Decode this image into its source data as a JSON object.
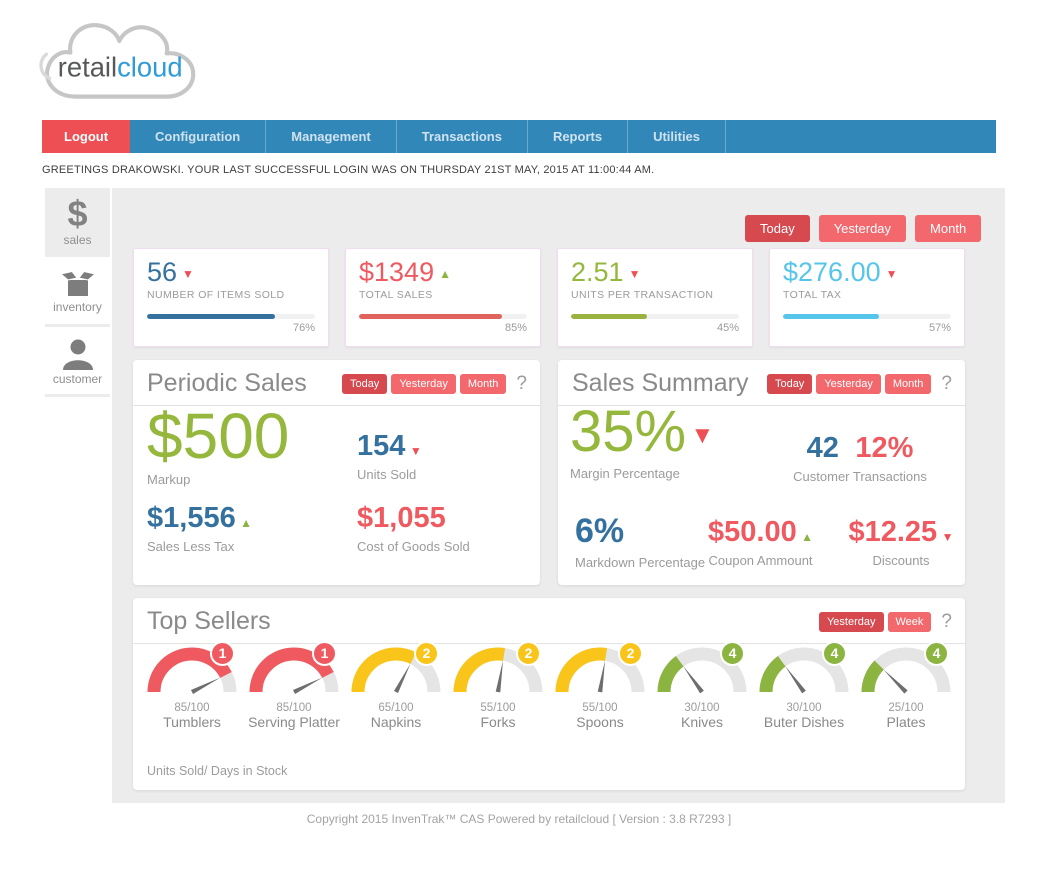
{
  "logo": {
    "retail": "retail",
    "cloud": "cloud"
  },
  "nav": {
    "items": [
      {
        "label": "Logout",
        "active": true
      },
      {
        "label": "Configuration",
        "active": false
      },
      {
        "label": "Management",
        "active": false
      },
      {
        "label": "Transactions",
        "active": false
      },
      {
        "label": "Reports",
        "active": false
      },
      {
        "label": "Utilities",
        "active": false
      }
    ]
  },
  "greeting": "GREETINGS DRAKOWSKI. YOUR LAST SUCCESSFUL LOGIN WAS ON THURSDAY 21ST MAY, 2015 AT 11:00:44 AM.",
  "sidebar": {
    "items": [
      {
        "id": "sales",
        "label": "sales",
        "icon": "dollar-icon",
        "active": true
      },
      {
        "id": "inventory",
        "label": "inventory",
        "icon": "box-icon",
        "active": false
      },
      {
        "id": "customer",
        "label": "customer",
        "icon": "person-icon",
        "active": false
      }
    ]
  },
  "top_filters": [
    {
      "label": "Today",
      "active": true
    },
    {
      "label": "Yesterday",
      "active": false
    },
    {
      "label": "Month",
      "active": false
    }
  ],
  "kpis": [
    {
      "value": "56",
      "value_color": "#35719f",
      "trend": "▼",
      "trend_color": "#ee4f55",
      "label": "NUMBER OF ITEMS SOLD",
      "percent": 76,
      "percent_label": "76%",
      "bar_color": "#35719f"
    },
    {
      "value": "$1349",
      "value_color": "#ef5a60",
      "trend": "▲",
      "trend_color": "#8cb440",
      "label": "TOTAL SALES",
      "percent": 85,
      "percent_label": "85%",
      "bar_color": "#e0635e"
    },
    {
      "value": "2.51",
      "value_color": "#94b73c",
      "trend": "▼",
      "trend_color": "#ee4f55",
      "label": "UNITS PER TRANSACTION",
      "percent": 45,
      "percent_label": "45%",
      "bar_color": "#9ab23f"
    },
    {
      "value": "$276.00",
      "value_color": "#56c5ea",
      "trend": "▼",
      "trend_color": "#ee4f55",
      "label": "TOTAL TAX",
      "percent": 57,
      "percent_label": "57%",
      "bar_color": "#56c5ea"
    }
  ],
  "periodic_sales": {
    "title": "Periodic Sales",
    "buttons": [
      {
        "label": "Today",
        "active": true
      },
      {
        "label": "Yesterday",
        "active": false
      },
      {
        "label": "Month",
        "active": false
      }
    ],
    "help": "?",
    "markup": {
      "value": "$500",
      "label": "Markup"
    },
    "units_sold": {
      "value": "154",
      "trend": "▼",
      "label": "Units Sold"
    },
    "sales_less_tax": {
      "value": "$1,556",
      "trend": "▲",
      "label": "Sales Less Tax"
    },
    "cogs": {
      "value": "$1,055",
      "label": "Cost of Goods Sold"
    }
  },
  "sales_summary": {
    "title": "Sales Summary",
    "buttons": [
      {
        "label": "Today",
        "active": true
      },
      {
        "label": "Yesterday",
        "active": false
      },
      {
        "label": "Month",
        "active": false
      }
    ],
    "help": "?",
    "margin": {
      "value": "35%",
      "trend": "▼",
      "label": "Margin Percentage"
    },
    "customer_transactions": {
      "count": "42",
      "percent": "12%",
      "label": "Customer Transactions"
    },
    "markdown": {
      "value": "6%",
      "label": "Markdown Percentage"
    },
    "coupon": {
      "value": "$50.00",
      "trend": "▲",
      "label": "Coupon Ammount"
    },
    "discounts": {
      "value": "$12.25",
      "trend": "▼",
      "label": "Discounts"
    }
  },
  "top_sellers": {
    "title": "Top Sellers",
    "buttons": [
      {
        "label": "Yesterday",
        "active": true
      },
      {
        "label": "Week",
        "active": false
      }
    ],
    "help": "?",
    "footnote": "Units Sold/ Days in Stock",
    "gauges": [
      {
        "value": 85,
        "max": 100,
        "ratio_label": "85/100",
        "name": "Tumblers",
        "rank": "1",
        "color": "#ef5a60"
      },
      {
        "value": 85,
        "max": 100,
        "ratio_label": "85/100",
        "name": "Serving Platter",
        "rank": "1",
        "color": "#ef5a60"
      },
      {
        "value": 65,
        "max": 100,
        "ratio_label": "65/100",
        "name": "Napkins",
        "rank": "2",
        "color": "#f9c51a"
      },
      {
        "value": 55,
        "max": 100,
        "ratio_label": "55/100",
        "name": "Forks",
        "rank": "2",
        "color": "#f9c51a"
      },
      {
        "value": 55,
        "max": 100,
        "ratio_label": "55/100",
        "name": "Spoons",
        "rank": "2",
        "color": "#f9c51a"
      },
      {
        "value": 30,
        "max": 100,
        "ratio_label": "30/100",
        "name": "Knives",
        "rank": "4",
        "color": "#8cb440"
      },
      {
        "value": 30,
        "max": 100,
        "ratio_label": "30/100",
        "name": "Buter Dishes",
        "rank": "4",
        "color": "#8cb440"
      },
      {
        "value": 25,
        "max": 100,
        "ratio_label": "25/100",
        "name": "Plates",
        "rank": "4",
        "color": "#8cb440"
      }
    ]
  },
  "footer": "Copyright 2015 InvenTrak™ CAS Powered by retailcloud [ Version : 3.8 R7293 ]",
  "colors": {
    "nav_blue": "#3287b9",
    "active_red": "#ee4f55",
    "button_dark": "#d6494f",
    "button_light": "#f2686d",
    "green": "#94b73c",
    "blue": "#35719f",
    "light_blue": "#56c5ea",
    "coral": "#ef5a60",
    "bg_gray": "#ececec",
    "track_gray": "#e5e5e5",
    "needle_gray": "#6e6e6e"
  }
}
